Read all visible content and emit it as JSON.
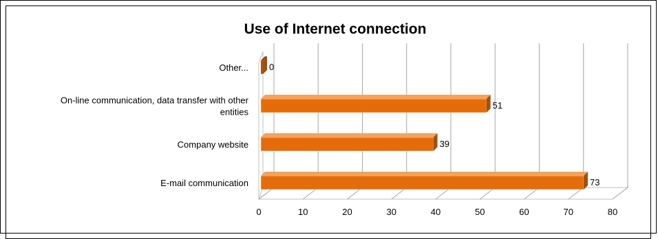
{
  "chart_data": {
    "type": "bar",
    "orientation": "horizontal",
    "three_d": true,
    "title": "Use of Internet connection",
    "categories": [
      "Other...",
      "On-line communication, data transfer with other entities",
      "Company website",
      "E-mail communication"
    ],
    "category_lines": [
      [
        "Other..."
      ],
      [
        "On-line communication, data transfer with other",
        "entities"
      ],
      [
        "Company website"
      ],
      [
        "E-mail communication"
      ]
    ],
    "values": [
      0,
      51,
      39,
      73
    ],
    "xlim": [
      0,
      80
    ],
    "xticks": [
      0,
      10,
      20,
      30,
      40,
      50,
      60,
      70,
      80
    ],
    "grid": true,
    "legend": "none",
    "colors": {
      "bar_front": "#E46C0A",
      "bar_top": "#F5A25A",
      "bar_side": "#A84E06",
      "zero_bar": "#8B3A00",
      "grid": "#A6A6A6"
    }
  }
}
